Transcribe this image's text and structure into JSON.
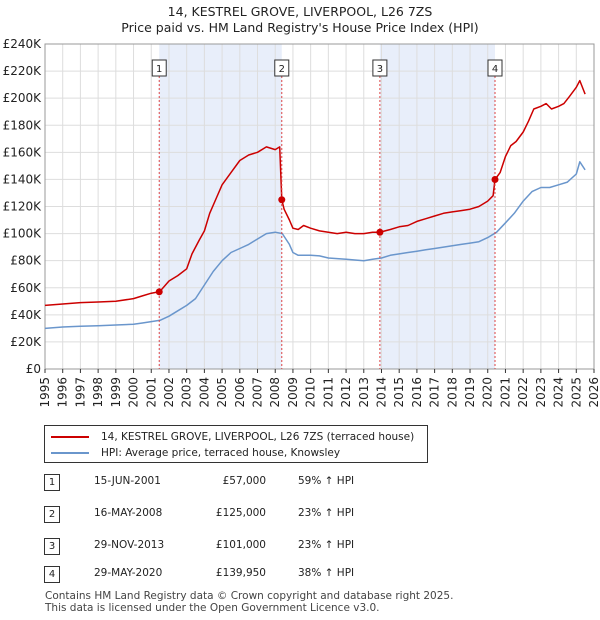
{
  "header": {
    "title_line1": "14, KESTREL GROVE, LIVERPOOL, L26 7ZS",
    "title_line2": "Price paid vs. HM Land Registry's House Price Index (HPI)"
  },
  "legend": {
    "property_label": "14, KESTREL GROVE, LIVERPOOL, L26 7ZS (terraced house)",
    "hpi_label": "HPI: Average price, terraced house, Knowsley"
  },
  "sales": [
    {
      "num": "1",
      "date": "15-JUN-2001",
      "price": "£57,000",
      "hpi": "59% ↑ HPI"
    },
    {
      "num": "2",
      "date": "16-MAY-2008",
      "price": "£125,000",
      "hpi": "23% ↑ HPI"
    },
    {
      "num": "3",
      "date": "29-NOV-2013",
      "price": "£101,000",
      "hpi": "23% ↑ HPI"
    },
    {
      "num": "4",
      "date": "29-MAY-2020",
      "price": "£139,950",
      "hpi": "38% ↑ HPI"
    }
  ],
  "footer": {
    "line1": "Contains HM Land Registry data © Crown copyright and database right 2025.",
    "line2": "This data is licensed under the Open Government Licence v3.0."
  },
  "colors": {
    "property": "#cc0000",
    "hpi": "#6a96cc",
    "shade": "#e8eefa",
    "grid": "#dddddd",
    "marker_line": "#dd4444"
  },
  "chart_data": {
    "type": "line",
    "title": "14, KESTREL GROVE, LIVERPOOL, L26 7ZS — Price paid vs. HM Land Registry's House Price Index (HPI)",
    "xlabel": "",
    "ylabel": "",
    "xlim": [
      1995,
      2026
    ],
    "ylim": [
      0,
      240000
    ],
    "x_ticks": [
      "1995",
      "1996",
      "1997",
      "1998",
      "1999",
      "2000",
      "2001",
      "2002",
      "2003",
      "2004",
      "2005",
      "2006",
      "2007",
      "2008",
      "2009",
      "2010",
      "2011",
      "2012",
      "2013",
      "2014",
      "2015",
      "2016",
      "2017",
      "2018",
      "2019",
      "2020",
      "2021",
      "2022",
      "2023",
      "2024",
      "2025",
      "2026"
    ],
    "y_ticks": [
      {
        "value": 0,
        "label": "£0"
      },
      {
        "value": 20000,
        "label": "£20K"
      },
      {
        "value": 40000,
        "label": "£40K"
      },
      {
        "value": 60000,
        "label": "£60K"
      },
      {
        "value": 80000,
        "label": "£80K"
      },
      {
        "value": 100000,
        "label": "£100K"
      },
      {
        "value": 120000,
        "label": "£120K"
      },
      {
        "value": 140000,
        "label": "£140K"
      },
      {
        "value": 160000,
        "label": "£160K"
      },
      {
        "value": 180000,
        "label": "£180K"
      },
      {
        "value": 200000,
        "label": "£200K"
      },
      {
        "value": 220000,
        "label": "£220K"
      },
      {
        "value": 240000,
        "label": "£240K"
      }
    ],
    "grid": true,
    "shaded_ranges": [
      [
        2001.45,
        2008.37
      ],
      [
        2013.91,
        2020.41
      ]
    ],
    "markers": [
      {
        "label": "1",
        "x": 2001.45,
        "y": 57000
      },
      {
        "label": "2",
        "x": 2008.37,
        "y": 125000
      },
      {
        "label": "3",
        "x": 2013.91,
        "y": 101000
      },
      {
        "label": "4",
        "x": 2020.41,
        "y": 139950
      }
    ],
    "series": [
      {
        "name": "14, KESTREL GROVE, LIVERPOOL, L26 7ZS (terraced house)",
        "color": "#cc0000",
        "x": [
          1995.0,
          1996.0,
          1997.0,
          1998.0,
          1999.0,
          2000.0,
          2000.5,
          2001.0,
          2001.45,
          2001.6,
          2002.0,
          2002.5,
          2003.0,
          2003.3,
          2003.7,
          2004.0,
          2004.3,
          2004.7,
          2005.0,
          2005.5,
          2006.0,
          2006.5,
          2007.0,
          2007.5,
          2008.0,
          2008.25,
          2008.37,
          2008.5,
          2008.8,
          2009.0,
          2009.3,
          2009.6,
          2010.0,
          2010.5,
          2011.0,
          2011.5,
          2012.0,
          2012.5,
          2013.0,
          2013.5,
          2013.91,
          2014.5,
          2015.0,
          2015.5,
          2016.0,
          2016.5,
          2017.0,
          2017.5,
          2018.0,
          2018.5,
          2019.0,
          2019.5,
          2020.0,
          2020.3,
          2020.41,
          2020.7,
          2021.0,
          2021.3,
          2021.6,
          2022.0,
          2022.3,
          2022.6,
          2023.0,
          2023.3,
          2023.6,
          2024.0,
          2024.3,
          2024.6,
          2025.0,
          2025.2,
          2025.5
        ],
        "y": [
          47000,
          48000,
          49000,
          49500,
          50000,
          52000,
          54000,
          56000,
          57000,
          59000,
          65000,
          69000,
          74000,
          85000,
          95000,
          102000,
          115000,
          127000,
          136000,
          145000,
          154000,
          158000,
          160000,
          164000,
          162000,
          164000,
          125000,
          118000,
          110000,
          104000,
          103000,
          106000,
          104000,
          102000,
          101000,
          100000,
          101000,
          100000,
          100000,
          101000,
          101000,
          103000,
          105000,
          106000,
          109000,
          111000,
          113000,
          115000,
          116000,
          117000,
          118000,
          120000,
          124000,
          128000,
          139950,
          145000,
          157000,
          165000,
          168000,
          175000,
          183000,
          192000,
          194000,
          196000,
          192000,
          194000,
          196000,
          201000,
          208000,
          213000,
          203000
        ]
      },
      {
        "name": "HPI: Average price, terraced house, Knowsley",
        "color": "#6a96cc",
        "x": [
          1995.0,
          1996.0,
          1997.0,
          1998.0,
          1999.0,
          2000.0,
          2000.5,
          2001.0,
          2001.5,
          2002.0,
          2002.5,
          2003.0,
          2003.5,
          2004.0,
          2004.5,
          2005.0,
          2005.5,
          2006.0,
          2006.5,
          2007.0,
          2007.5,
          2008.0,
          2008.4,
          2008.8,
          2009.0,
          2009.3,
          2009.6,
          2010.0,
          2010.5,
          2011.0,
          2011.5,
          2012.0,
          2012.5,
          2013.0,
          2013.5,
          2014.0,
          2014.5,
          2015.0,
          2015.5,
          2016.0,
          2016.5,
          2017.0,
          2017.5,
          2018.0,
          2018.5,
          2019.0,
          2019.5,
          2020.0,
          2020.5,
          2021.0,
          2021.5,
          2022.0,
          2022.5,
          2023.0,
          2023.5,
          2024.0,
          2024.5,
          2025.0,
          2025.2,
          2025.5
        ],
        "y": [
          30000,
          31000,
          31500,
          32000,
          32500,
          33000,
          34000,
          35000,
          36000,
          39000,
          43000,
          47000,
          52000,
          62000,
          72000,
          80000,
          86000,
          89000,
          92000,
          96000,
          100000,
          101000,
          100000,
          92000,
          86000,
          84000,
          84000,
          84000,
          83500,
          82000,
          81500,
          81000,
          80500,
          80000,
          81000,
          82000,
          84000,
          85000,
          86000,
          87000,
          88000,
          89000,
          90000,
          91000,
          92000,
          93000,
          94000,
          97000,
          101000,
          108000,
          115000,
          124000,
          131000,
          134000,
          134000,
          136000,
          138000,
          144000,
          153000,
          147000
        ]
      }
    ]
  }
}
